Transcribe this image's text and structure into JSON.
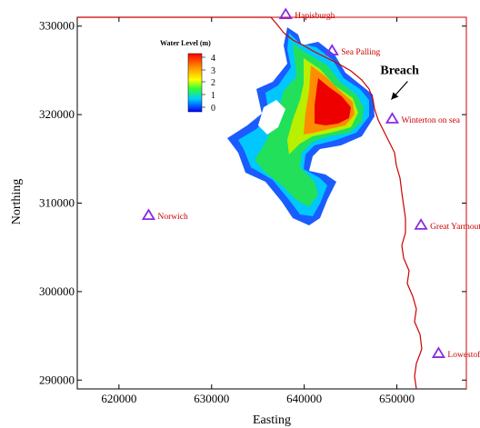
{
  "axes": {
    "xlabel": "Easting",
    "ylabel": "Northing",
    "xlim": [
      615500,
      657500
    ],
    "ylim": [
      289000,
      331000
    ],
    "x_ticks": [
      {
        "value": 620000,
        "label": "620000"
      },
      {
        "value": 630000,
        "label": "630000"
      },
      {
        "value": 640000,
        "label": "640000"
      },
      {
        "value": 650000,
        "label": "650000"
      }
    ],
    "y_ticks": [
      {
        "value": 290000,
        "label": "290000"
      },
      {
        "value": 300000,
        "label": "300000"
      },
      {
        "value": 310000,
        "label": "310000"
      },
      {
        "value": 320000,
        "label": "320000"
      },
      {
        "value": 330000,
        "label": "330000"
      }
    ]
  },
  "legend": {
    "title": "Water Level (m)",
    "labels": [
      "4",
      "3",
      "2",
      "1",
      "0"
    ]
  },
  "places": [
    {
      "name": "Hapisburgh",
      "easting": 638000,
      "northing": 331300
    },
    {
      "name": "Sea Palling",
      "easting": 643000,
      "northing": 327200
    },
    {
      "name": "Winterton on sea",
      "easting": 649500,
      "northing": 319500
    },
    {
      "name": "Norwich",
      "easting": 623200,
      "northing": 308600
    },
    {
      "name": "Great Yarmouth",
      "easting": 652600,
      "northing": 307500
    },
    {
      "name": "Lowestoft",
      "easting": 654500,
      "northing": 293000
    }
  ],
  "annotation": {
    "text": "Breach",
    "easting": 649200,
    "northing": 321500
  },
  "colors": {
    "coastline": "#cc0000",
    "place_marker": "#8a2be2",
    "place_label": "#cc0000",
    "scale": [
      "#0000ff",
      "#00aaff",
      "#00ff88",
      "#66ff00",
      "#ffff00",
      "#ff9900",
      "#ff0000"
    ]
  }
}
